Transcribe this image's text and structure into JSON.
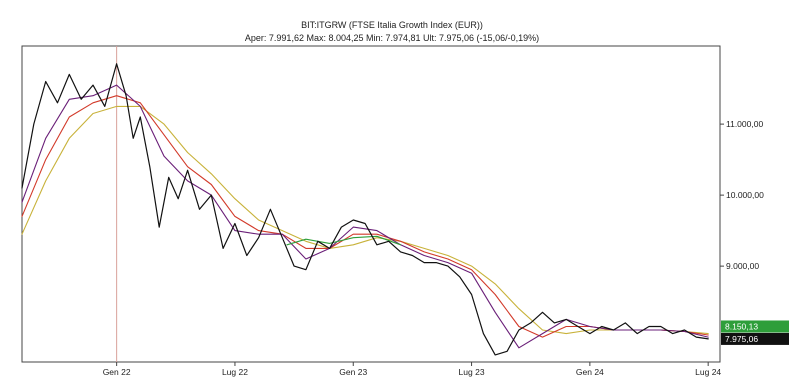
{
  "chart_data": {
    "type": "line",
    "title": "BIT:ITGRW (FTSE Italia Growth Index (EUR))",
    "subtitle": "Aper: 7.991,62 Max: 8.004,25 Min: 7.974,81 Ult: 7.975,06 (-15,06/-0,19%)",
    "xlabel": "",
    "ylabel": "",
    "grid": false,
    "x_ticks": [
      "Gen 22",
      "Lug 22",
      "Gen 23",
      "Lug 23",
      "Gen 24",
      "Lug 24"
    ],
    "y_ticks": [
      {
        "value": 9000,
        "label": "9.000,00"
      },
      {
        "value": 10000,
        "label": "10.000,00"
      },
      {
        "value": 11000,
        "label": "11.000,00"
      }
    ],
    "ylim": [
      7650,
      12100
    ],
    "xlim": [
      2021.6,
      2024.55
    ],
    "cursor_x": 2022.0,
    "last_labels": [
      {
        "value": 8150.13,
        "label": "8.150,13",
        "color": "#2e9e3a"
      },
      {
        "value": 7975.06,
        "label": "7.975,06",
        "color": "#111111"
      }
    ],
    "colors": {
      "price": "#111111",
      "ma1": "#6a1f78",
      "ma2": "#d23a2a",
      "ma3": "#c8b23a",
      "ma4": "#2e9e3a",
      "cursor": "#d8a09a"
    },
    "price": {
      "x": [
        2021.6,
        2021.65,
        2021.7,
        2021.75,
        2021.8,
        2021.85,
        2021.9,
        2021.95,
        2022.0,
        2022.04,
        2022.07,
        2022.1,
        2022.14,
        2022.18,
        2022.22,
        2022.26,
        2022.3,
        2022.35,
        2022.4,
        2022.45,
        2022.5,
        2022.55,
        2022.6,
        2022.65,
        2022.7,
        2022.75,
        2022.8,
        2022.85,
        2022.9,
        2022.95,
        2023.0,
        2023.05,
        2023.1,
        2023.15,
        2023.2,
        2023.25,
        2023.3,
        2023.35,
        2023.4,
        2023.45,
        2023.5,
        2023.55,
        2023.6,
        2023.65,
        2023.7,
        2023.75,
        2023.8,
        2023.85,
        2023.9,
        2023.95,
        2024.0,
        2024.05,
        2024.1,
        2024.15,
        2024.2,
        2024.25,
        2024.3,
        2024.35,
        2024.4,
        2024.45,
        2024.5
      ],
      "y": [
        10100,
        11000,
        11600,
        11300,
        11700,
        11350,
        11550,
        11250,
        11850,
        11400,
        10800,
        11100,
        10400,
        9550,
        10250,
        9950,
        10350,
        9800,
        10000,
        9250,
        9600,
        9150,
        9400,
        9800,
        9400,
        9000,
        8950,
        9350,
        9250,
        9550,
        9650,
        9600,
        9300,
        9350,
        9200,
        9150,
        9050,
        9050,
        9000,
        8850,
        8600,
        8050,
        7750,
        7800,
        8100,
        8200,
        8350,
        8200,
        8250,
        8150,
        8050,
        8150,
        8100,
        8200,
        8050,
        8150,
        8150,
        8050,
        8100,
        8000,
        7975
      ]
    },
    "ma1": {
      "x": [
        2021.6,
        2021.7,
        2021.8,
        2021.9,
        2022.0,
        2022.1,
        2022.2,
        2022.3,
        2022.4,
        2022.5,
        2022.6,
        2022.7,
        2022.8,
        2022.9,
        2023.0,
        2023.1,
        2023.2,
        2023.3,
        2023.4,
        2023.5,
        2023.6,
        2023.7,
        2023.8,
        2023.9,
        2024.0,
        2024.1,
        2024.2,
        2024.3,
        2024.4,
        2024.5
      ],
      "y": [
        9900,
        10800,
        11350,
        11400,
        11550,
        11250,
        10550,
        10200,
        10000,
        9500,
        9450,
        9450,
        9100,
        9250,
        9550,
        9500,
        9300,
        9150,
        9050,
        8900,
        8350,
        7850,
        8050,
        8250,
        8150,
        8100,
        8100,
        8100,
        8080,
        8000
      ]
    },
    "ma2": {
      "x": [
        2021.6,
        2021.7,
        2021.8,
        2021.9,
        2022.0,
        2022.1,
        2022.2,
        2022.3,
        2022.4,
        2022.5,
        2022.6,
        2022.7,
        2022.8,
        2022.9,
        2023.0,
        2023.1,
        2023.2,
        2023.3,
        2023.4,
        2023.5,
        2023.6,
        2023.7,
        2023.8,
        2023.9,
        2024.0,
        2024.1,
        2024.2,
        2024.3,
        2024.4,
        2024.5
      ],
      "y": [
        9700,
        10500,
        11100,
        11300,
        11400,
        11300,
        10850,
        10400,
        10150,
        9700,
        9500,
        9450,
        9250,
        9250,
        9450,
        9450,
        9350,
        9200,
        9100,
        8950,
        8600,
        8150,
        8000,
        8150,
        8150,
        8100,
        8100,
        8100,
        8080,
        8030
      ]
    },
    "ma3": {
      "x": [
        2021.6,
        2021.7,
        2021.8,
        2021.9,
        2022.0,
        2022.1,
        2022.2,
        2022.3,
        2022.4,
        2022.5,
        2022.6,
        2022.7,
        2022.8,
        2022.9,
        2023.0,
        2023.1,
        2023.2,
        2023.3,
        2023.4,
        2023.5,
        2023.6,
        2023.7,
        2023.8,
        2023.9,
        2024.0,
        2024.1,
        2024.2,
        2024.3,
        2024.4,
        2024.5
      ],
      "y": [
        9450,
        10200,
        10800,
        11150,
        11250,
        11250,
        11000,
        10600,
        10300,
        9950,
        9650,
        9500,
        9350,
        9250,
        9300,
        9400,
        9350,
        9250,
        9150,
        9000,
        8750,
        8400,
        8100,
        8050,
        8100,
        8100,
        8100,
        8100,
        8080,
        8050
      ]
    },
    "ma4": {
      "x": [
        2022.72,
        2022.8,
        2022.9,
        2023.0,
        2023.1,
        2023.2
      ],
      "y": [
        9300,
        9380,
        9320,
        9400,
        9420,
        9300
      ]
    }
  }
}
